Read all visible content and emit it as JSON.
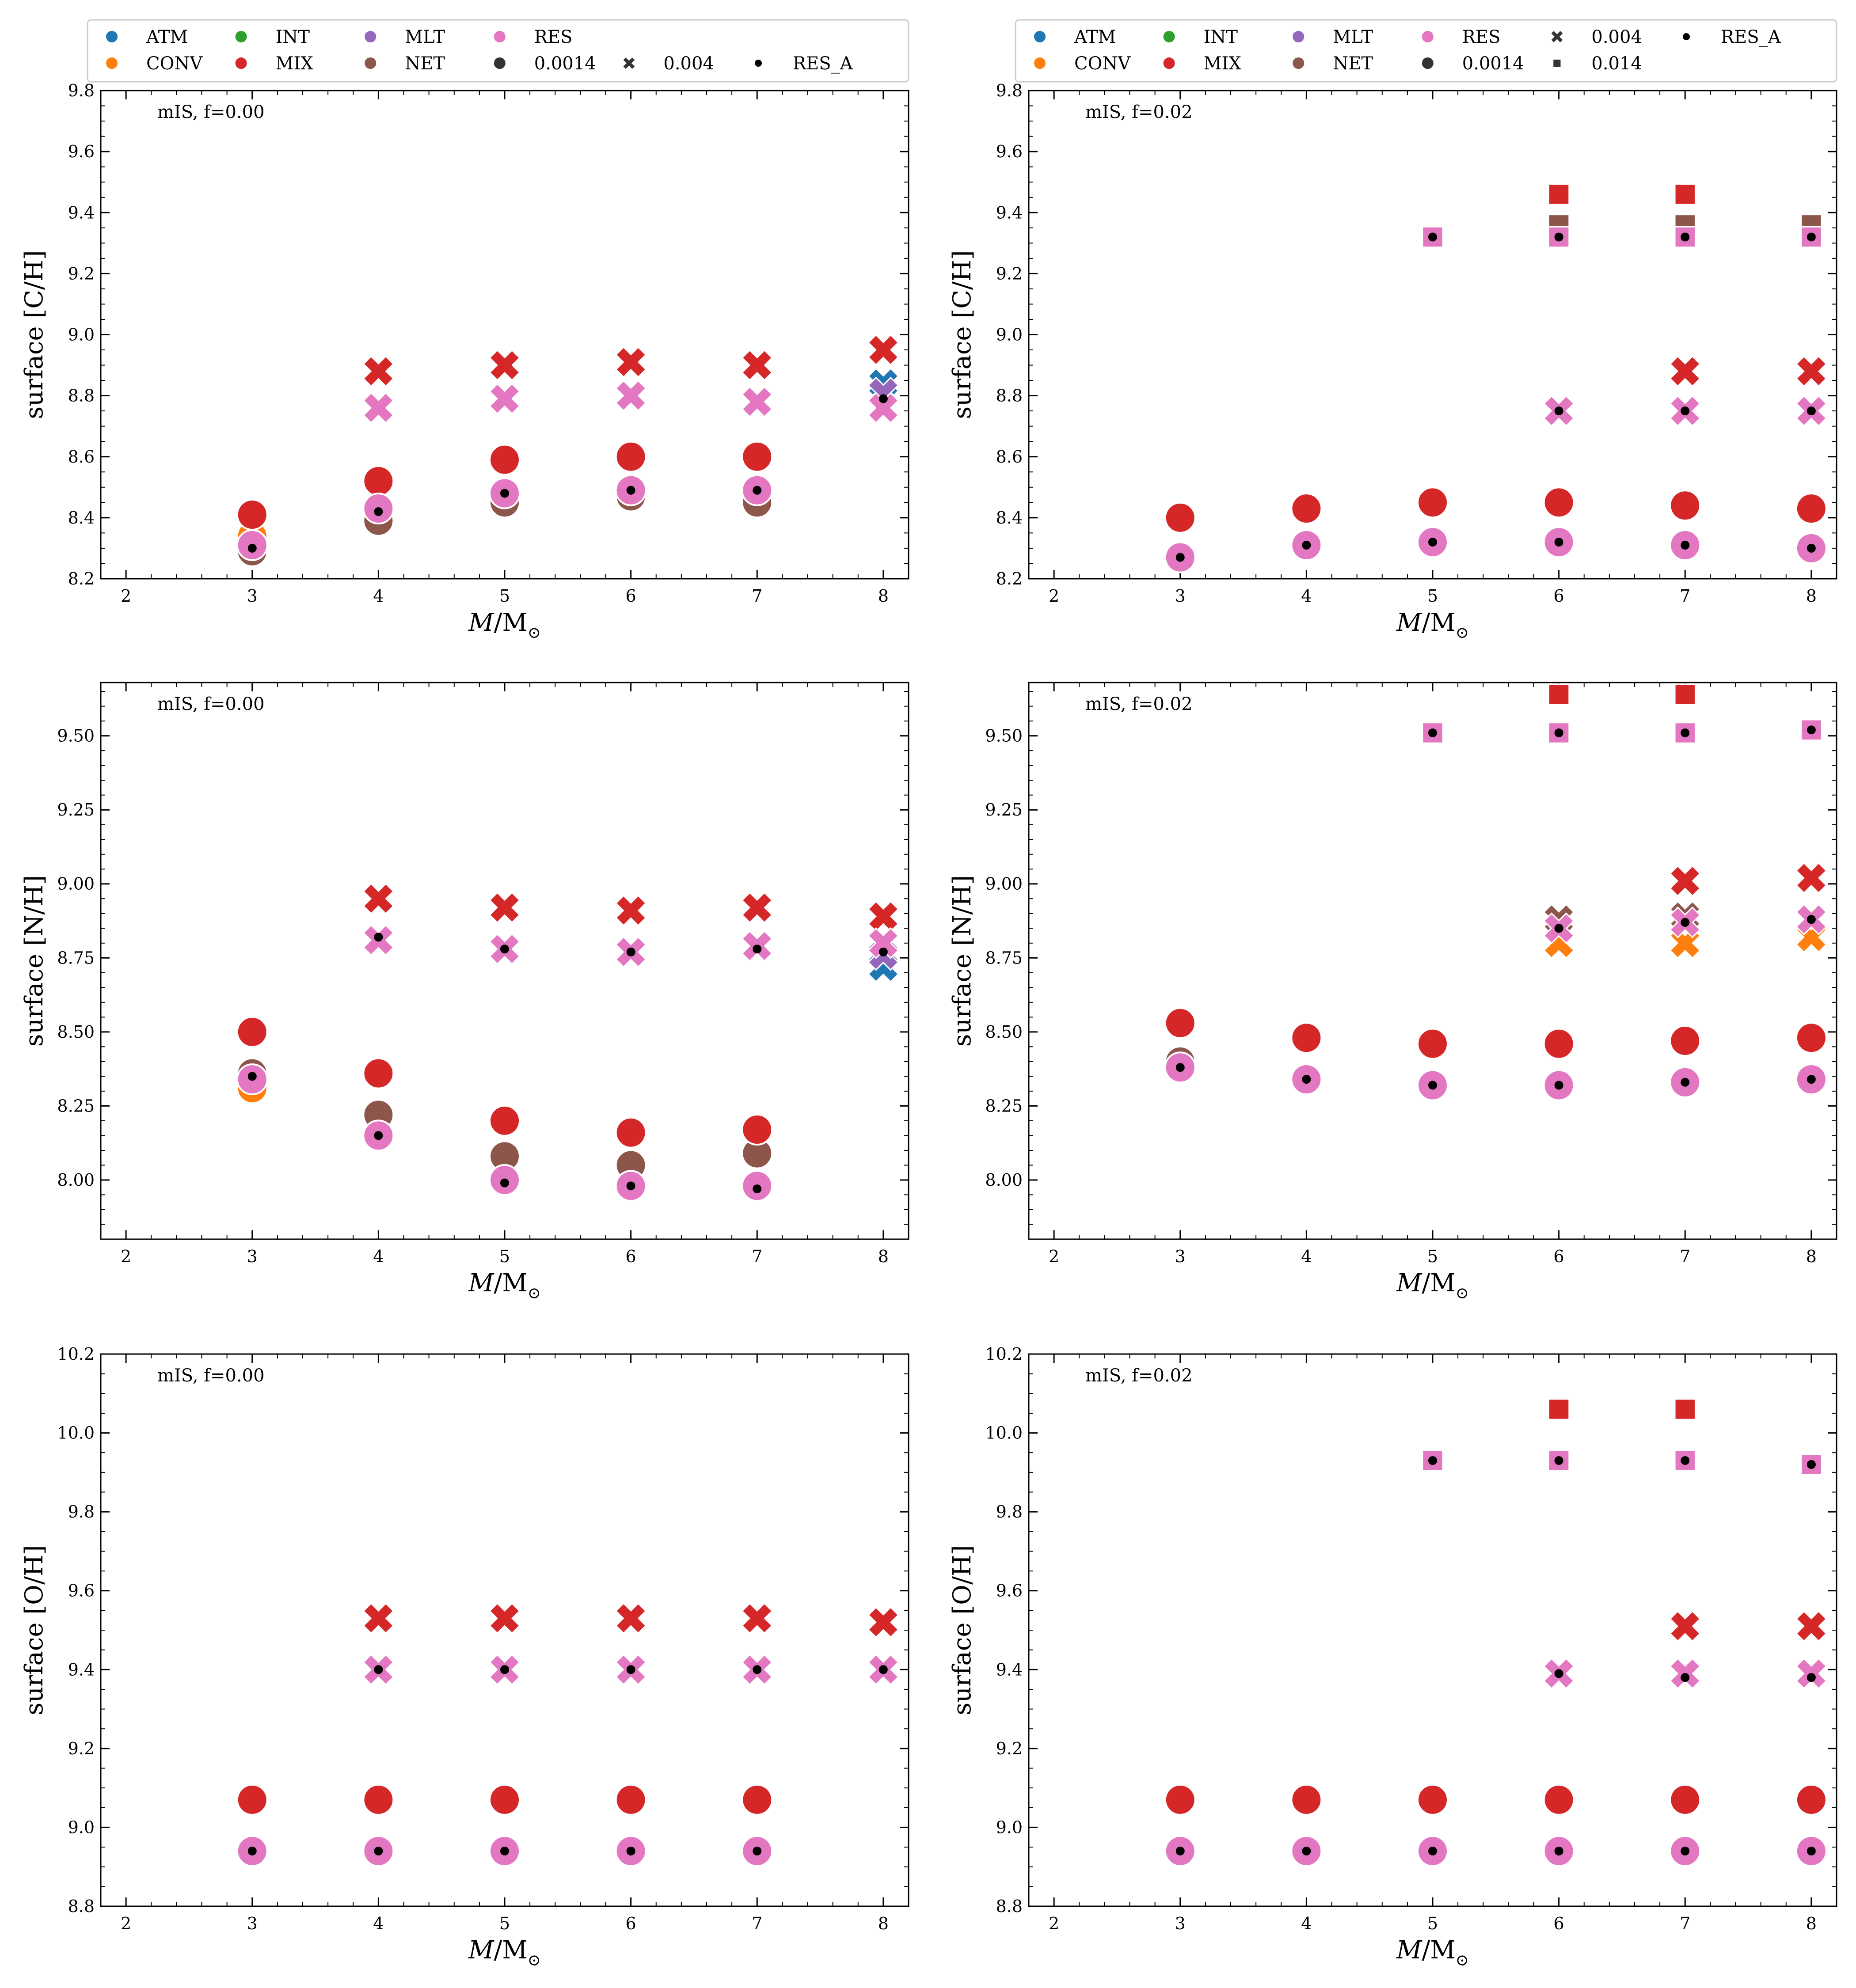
{
  "figure": {
    "xlabel": "M/M",
    "xlabel_sub": "⊙",
    "legend_groups": [
      {
        "name": "ATM",
        "color": "#1f77b4",
        "marker": "circle"
      },
      {
        "name": "CONV",
        "color": "#ff7f0e",
        "marker": "circle"
      },
      {
        "name": "INT",
        "color": "#2ca02c",
        "marker": "circle"
      },
      {
        "name": "MIX",
        "color": "#d62728",
        "marker": "circle"
      },
      {
        "name": "MLT",
        "color": "#9467bd",
        "marker": "circle"
      },
      {
        "name": "NET",
        "color": "#8c564b",
        "marker": "circle"
      },
      {
        "name": "RES",
        "color": "#e377c2",
        "marker": "circle"
      }
    ],
    "legend_marker_labels": {
      "z0014": "0.0014",
      "z004": "0.004",
      "z014": "0.014",
      "resa": "RES_A"
    },
    "legend_marker_color": "#333333"
  },
  "chart_data": [
    {
      "type": "scatter",
      "panel": "left-top",
      "annotation": "mIS, f=0.00",
      "ylabel": "surface [C/H]",
      "xlim": [
        1.8,
        8.2
      ],
      "xticks": [
        2,
        3,
        4,
        5,
        6,
        7,
        8
      ],
      "ylim": [
        8.2,
        9.8
      ],
      "yticks": [
        8.2,
        8.4,
        8.6,
        8.8,
        9.0,
        9.2,
        9.4,
        9.6,
        9.8
      ],
      "legend_extra": [
        "z0014",
        "z004",
        "resa"
      ],
      "series": [
        {
          "name": "CONV 0.0014",
          "group": "CONV",
          "marker": "circle",
          "x": [
            3
          ],
          "y": [
            8.34
          ]
        },
        {
          "name": "NET 0.0014",
          "group": "NET",
          "marker": "circle",
          "x": [
            3,
            4,
            5,
            6,
            7
          ],
          "y": [
            8.29,
            8.39,
            8.45,
            8.47,
            8.45
          ]
        },
        {
          "name": "MIX 0.0014",
          "group": "MIX",
          "marker": "circle",
          "x": [
            3,
            4,
            5,
            6,
            7
          ],
          "y": [
            8.41,
            8.52,
            8.59,
            8.6,
            8.6
          ]
        },
        {
          "name": "RES 0.0014",
          "group": "RES",
          "marker": "circle",
          "x": [
            3,
            4,
            5,
            6,
            7
          ],
          "y": [
            8.31,
            8.43,
            8.48,
            8.49,
            8.49
          ]
        },
        {
          "name": "ATM 0.004",
          "group": "ATM",
          "marker": "x",
          "x": [
            8
          ],
          "y": [
            8.84
          ]
        },
        {
          "name": "MLT 0.004",
          "group": "MLT",
          "marker": "x",
          "x": [
            8
          ],
          "y": [
            8.81
          ]
        },
        {
          "name": "MIX 0.004",
          "group": "MIX",
          "marker": "x",
          "x": [
            4,
            5,
            6,
            7,
            8
          ],
          "y": [
            8.88,
            8.9,
            8.91,
            8.9,
            8.95
          ]
        },
        {
          "name": "RES 0.004",
          "group": "RES",
          "marker": "x",
          "x": [
            4,
            5,
            6,
            7,
            8
          ],
          "y": [
            8.76,
            8.79,
            8.8,
            8.78,
            8.76
          ]
        },
        {
          "name": "RES_A",
          "group": "RES_A",
          "marker": "dot",
          "x": [
            3,
            4,
            5,
            6,
            7,
            8
          ],
          "y": [
            8.3,
            8.42,
            8.48,
            8.49,
            8.49,
            8.79
          ]
        }
      ]
    },
    {
      "type": "scatter",
      "panel": "right-top",
      "annotation": "mIS, f=0.02",
      "ylabel": "surface [C/H]",
      "xlim": [
        1.8,
        8.2
      ],
      "xticks": [
        2,
        3,
        4,
        5,
        6,
        7,
        8
      ],
      "ylim": [
        8.2,
        9.8
      ],
      "yticks": [
        8.2,
        8.4,
        8.6,
        8.8,
        9.0,
        9.2,
        9.4,
        9.6,
        9.8
      ],
      "legend_extra": [
        "z0014",
        "z004",
        "z014",
        "resa"
      ],
      "series": [
        {
          "name": "MIX 0.0014",
          "group": "MIX",
          "marker": "circle",
          "x": [
            3,
            4,
            5,
            6,
            7,
            8
          ],
          "y": [
            8.4,
            8.43,
            8.45,
            8.45,
            8.44,
            8.43
          ]
        },
        {
          "name": "RES 0.0014",
          "group": "RES",
          "marker": "circle",
          "x": [
            3,
            4,
            5,
            6,
            7,
            8
          ],
          "y": [
            8.27,
            8.31,
            8.32,
            8.32,
            8.31,
            8.3
          ]
        },
        {
          "name": "MIX 0.004",
          "group": "MIX",
          "marker": "x",
          "x": [
            7,
            8
          ],
          "y": [
            8.88,
            8.88
          ]
        },
        {
          "name": "RES 0.004",
          "group": "RES",
          "marker": "x",
          "x": [
            6,
            7,
            8
          ],
          "y": [
            8.75,
            8.75,
            8.75
          ]
        },
        {
          "name": "NET 0.014",
          "group": "NET",
          "marker": "square",
          "x": [
            6,
            7,
            8
          ],
          "y": [
            9.36,
            9.36,
            9.36
          ]
        },
        {
          "name": "MIX 0.014",
          "group": "MIX",
          "marker": "square",
          "x": [
            6,
            7
          ],
          "y": [
            9.46,
            9.46
          ]
        },
        {
          "name": "RES 0.014",
          "group": "RES",
          "marker": "square",
          "x": [
            5,
            6,
            7,
            8
          ],
          "y": [
            9.32,
            9.32,
            9.32,
            9.32
          ]
        },
        {
          "name": "RES_A",
          "group": "RES_A",
          "marker": "dot",
          "x": [
            3,
            4,
            5,
            6,
            7,
            8,
            5,
            6,
            7,
            8,
            6,
            7,
            8
          ],
          "y": [
            8.27,
            8.31,
            8.32,
            8.32,
            8.31,
            8.3,
            9.32,
            9.32,
            9.32,
            9.32,
            8.75,
            8.75,
            8.75
          ]
        }
      ]
    },
    {
      "type": "scatter",
      "panel": "left-middle",
      "annotation": "mIS, f=0.00",
      "ylabel": "surface [N/H]",
      "xlim": [
        1.8,
        8.2
      ],
      "xticks": [
        2,
        3,
        4,
        5,
        6,
        7,
        8
      ],
      "ylim": [
        7.8,
        9.68
      ],
      "yticks": [
        8.0,
        8.25,
        8.5,
        8.75,
        9.0,
        9.25,
        9.5
      ],
      "legend_extra": [],
      "series": [
        {
          "name": "CONV 0.0014",
          "group": "CONV",
          "marker": "circle",
          "x": [
            3
          ],
          "y": [
            8.31
          ]
        },
        {
          "name": "NET 0.0014",
          "group": "NET",
          "marker": "circle",
          "x": [
            3,
            4,
            5,
            6,
            7
          ],
          "y": [
            8.36,
            8.22,
            8.08,
            8.05,
            8.09
          ]
        },
        {
          "name": "MIX 0.0014",
          "group": "MIX",
          "marker": "circle",
          "x": [
            3,
            4,
            5,
            6,
            7
          ],
          "y": [
            8.5,
            8.36,
            8.2,
            8.16,
            8.17
          ]
        },
        {
          "name": "RES 0.0014",
          "group": "RES",
          "marker": "circle",
          "x": [
            3,
            4,
            5,
            6,
            7
          ],
          "y": [
            8.34,
            8.15,
            8.0,
            7.98,
            7.98
          ]
        },
        {
          "name": "ATM 0.004",
          "group": "ATM",
          "marker": "x",
          "x": [
            8
          ],
          "y": [
            8.72
          ]
        },
        {
          "name": "MLT 0.004",
          "group": "MLT",
          "marker": "x",
          "x": [
            8
          ],
          "y": [
            8.76
          ]
        },
        {
          "name": "MIX 0.004",
          "group": "MIX",
          "marker": "x",
          "x": [
            4,
            5,
            6,
            7,
            8
          ],
          "y": [
            8.95,
            8.92,
            8.91,
            8.92,
            8.89
          ]
        },
        {
          "name": "RES 0.004",
          "group": "RES",
          "marker": "x",
          "x": [
            4,
            5,
            6,
            7,
            8
          ],
          "y": [
            8.81,
            8.78,
            8.77,
            8.79,
            8.8
          ]
        },
        {
          "name": "RES_A",
          "group": "RES_A",
          "marker": "dot",
          "x": [
            3,
            4,
            5,
            6,
            7,
            4,
            5,
            6,
            7,
            8
          ],
          "y": [
            8.35,
            8.15,
            7.99,
            7.98,
            7.97,
            8.82,
            8.78,
            8.77,
            8.78,
            8.77
          ]
        }
      ]
    },
    {
      "type": "scatter",
      "panel": "right-middle",
      "annotation": "mIS, f=0.02",
      "ylabel": "surface [N/H]",
      "xlim": [
        1.8,
        8.2
      ],
      "xticks": [
        2,
        3,
        4,
        5,
        6,
        7,
        8
      ],
      "ylim": [
        7.8,
        9.68
      ],
      "yticks": [
        8.0,
        8.25,
        8.5,
        8.75,
        9.0,
        9.25,
        9.5
      ],
      "legend_extra": [],
      "series": [
        {
          "name": "NET 0.0014",
          "group": "NET",
          "marker": "circle",
          "x": [
            3
          ],
          "y": [
            8.4
          ]
        },
        {
          "name": "MIX 0.0014",
          "group": "MIX",
          "marker": "circle",
          "x": [
            3,
            4,
            5,
            6,
            7,
            8
          ],
          "y": [
            8.53,
            8.48,
            8.46,
            8.46,
            8.47,
            8.48
          ]
        },
        {
          "name": "RES 0.0014",
          "group": "RES",
          "marker": "circle",
          "x": [
            3,
            4,
            5,
            6,
            7,
            8
          ],
          "y": [
            8.38,
            8.34,
            8.32,
            8.32,
            8.33,
            8.34
          ]
        },
        {
          "name": "CONV 0.004",
          "group": "CONV",
          "marker": "x",
          "x": [
            6,
            7,
            8
          ],
          "y": [
            8.8,
            8.8,
            8.82
          ]
        },
        {
          "name": "NET 0.004",
          "group": "NET",
          "marker": "x",
          "x": [
            6,
            7
          ],
          "y": [
            8.88,
            8.89
          ]
        },
        {
          "name": "MIX 0.004",
          "group": "MIX",
          "marker": "x",
          "x": [
            7,
            8
          ],
          "y": [
            9.01,
            9.02
          ]
        },
        {
          "name": "RES 0.004",
          "group": "RES",
          "marker": "x",
          "x": [
            6,
            7,
            8
          ],
          "y": [
            8.85,
            8.87,
            8.88
          ]
        },
        {
          "name": "MIX 0.014",
          "group": "MIX",
          "marker": "square",
          "x": [
            6,
            7
          ],
          "y": [
            9.64,
            9.64
          ]
        },
        {
          "name": "RES 0.014",
          "group": "RES",
          "marker": "square",
          "x": [
            5,
            6,
            7,
            8
          ],
          "y": [
            9.51,
            9.51,
            9.51,
            9.52
          ]
        },
        {
          "name": "RES_A",
          "group": "RES_A",
          "marker": "dot",
          "x": [
            3,
            4,
            5,
            6,
            7,
            8,
            6,
            7,
            8,
            5,
            6,
            7,
            8
          ],
          "y": [
            8.38,
            8.34,
            8.32,
            8.32,
            8.33,
            8.34,
            8.85,
            8.87,
            8.88,
            9.51,
            9.51,
            9.51,
            9.52
          ]
        }
      ]
    },
    {
      "type": "scatter",
      "panel": "left-bottom",
      "annotation": "mIS, f=0.00",
      "ylabel": "surface [O/H]",
      "xlim": [
        1.8,
        8.2
      ],
      "xticks": [
        2,
        3,
        4,
        5,
        6,
        7,
        8
      ],
      "ylim": [
        8.8,
        10.2
      ],
      "yticks": [
        8.8,
        9.0,
        9.2,
        9.4,
        9.6,
        9.8,
        10.0,
        10.2
      ],
      "legend_extra": [],
      "series": [
        {
          "name": "MIX 0.0014",
          "group": "MIX",
          "marker": "circle",
          "x": [
            3,
            4,
            5,
            6,
            7
          ],
          "y": [
            9.07,
            9.07,
            9.07,
            9.07,
            9.07
          ]
        },
        {
          "name": "RES 0.0014",
          "group": "RES",
          "marker": "circle",
          "x": [
            3,
            4,
            5,
            6,
            7
          ],
          "y": [
            8.94,
            8.94,
            8.94,
            8.94,
            8.94
          ]
        },
        {
          "name": "MIX 0.004",
          "group": "MIX",
          "marker": "x",
          "x": [
            4,
            5,
            6,
            7,
            8
          ],
          "y": [
            9.53,
            9.53,
            9.53,
            9.53,
            9.52
          ]
        },
        {
          "name": "RES 0.004",
          "group": "RES",
          "marker": "x",
          "x": [
            4,
            5,
            6,
            7,
            8
          ],
          "y": [
            9.4,
            9.4,
            9.4,
            9.4,
            9.4
          ]
        },
        {
          "name": "RES_A",
          "group": "RES_A",
          "marker": "dot",
          "x": [
            3,
            4,
            5,
            6,
            7,
            4,
            5,
            6,
            7,
            8
          ],
          "y": [
            8.94,
            8.94,
            8.94,
            8.94,
            8.94,
            9.4,
            9.4,
            9.4,
            9.4,
            9.4
          ]
        }
      ]
    },
    {
      "type": "scatter",
      "panel": "right-bottom",
      "annotation": "mIS, f=0.02",
      "ylabel": "surface [O/H]",
      "xlim": [
        1.8,
        8.2
      ],
      "xticks": [
        2,
        3,
        4,
        5,
        6,
        7,
        8
      ],
      "ylim": [
        8.8,
        10.2
      ],
      "yticks": [
        8.8,
        9.0,
        9.2,
        9.4,
        9.6,
        9.8,
        10.0,
        10.2
      ],
      "legend_extra": [],
      "series": [
        {
          "name": "MIX 0.0014",
          "group": "MIX",
          "marker": "circle",
          "x": [
            3,
            4,
            5,
            6,
            7,
            8
          ],
          "y": [
            9.07,
            9.07,
            9.07,
            9.07,
            9.07,
            9.07
          ]
        },
        {
          "name": "RES 0.0014",
          "group": "RES",
          "marker": "circle",
          "x": [
            3,
            4,
            5,
            6,
            7,
            8
          ],
          "y": [
            8.94,
            8.94,
            8.94,
            8.94,
            8.94,
            8.94
          ]
        },
        {
          "name": "MIX 0.004",
          "group": "MIX",
          "marker": "x",
          "x": [
            7,
            8
          ],
          "y": [
            9.51,
            9.51
          ]
        },
        {
          "name": "RES 0.004",
          "group": "RES",
          "marker": "x",
          "x": [
            6,
            7,
            8
          ],
          "y": [
            9.39,
            9.39,
            9.39
          ]
        },
        {
          "name": "MIX 0.014",
          "group": "MIX",
          "marker": "square",
          "x": [
            6,
            7
          ],
          "y": [
            10.06,
            10.06
          ]
        },
        {
          "name": "RES 0.014",
          "group": "RES",
          "marker": "square",
          "x": [
            5,
            6,
            7,
            8
          ],
          "y": [
            9.93,
            9.93,
            9.93,
            9.92
          ]
        },
        {
          "name": "RES_A",
          "group": "RES_A",
          "marker": "dot",
          "x": [
            3,
            4,
            5,
            6,
            7,
            8,
            6,
            7,
            8,
            5,
            6,
            7,
            8
          ],
          "y": [
            8.94,
            8.94,
            8.94,
            8.94,
            8.94,
            8.94,
            9.39,
            9.38,
            9.38,
            9.93,
            9.93,
            9.93,
            9.92
          ]
        }
      ]
    }
  ]
}
